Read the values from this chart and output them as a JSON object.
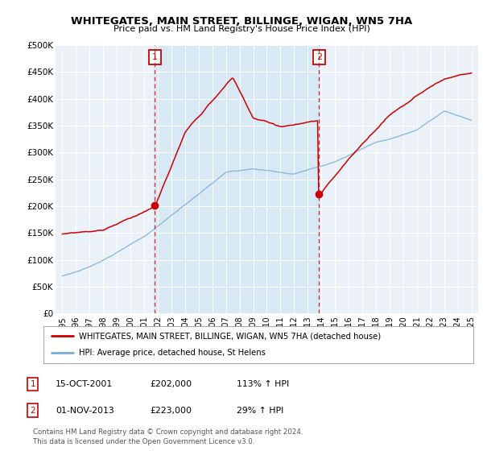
{
  "title": "WHITEGATES, MAIN STREET, BILLINGE, WIGAN, WN5 7HA",
  "subtitle": "Price paid vs. HM Land Registry's House Price Index (HPI)",
  "legend_label_red": "WHITEGATES, MAIN STREET, BILLINGE, WIGAN, WN5 7HA (detached house)",
  "legend_label_blue": "HPI: Average price, detached house, St Helens",
  "annotation1_label": "1",
  "annotation1_date": "15-OCT-2001",
  "annotation1_price": "£202,000",
  "annotation1_hpi": "113% ↑ HPI",
  "annotation2_label": "2",
  "annotation2_date": "01-NOV-2013",
  "annotation2_price": "£223,000",
  "annotation2_hpi": "29% ↑ HPI",
  "footnote": "Contains HM Land Registry data © Crown copyright and database right 2024.\nThis data is licensed under the Open Government Licence v3.0.",
  "ylim": [
    0,
    500000
  ],
  "yticks": [
    0,
    50000,
    100000,
    150000,
    200000,
    250000,
    300000,
    350000,
    400000,
    450000,
    500000
  ],
  "ytick_labels": [
    "£0",
    "£50K",
    "£100K",
    "£150K",
    "£200K",
    "£250K",
    "£300K",
    "£350K",
    "£400K",
    "£450K",
    "£500K"
  ],
  "color_red": "#cc0000",
  "color_blue": "#7aaed6",
  "color_vline": "#cc0000",
  "color_shade": "#d8e8f5",
  "background_color": "#ffffff",
  "plot_bg_color": "#eaf1f8",
  "vline1_x": 2001.79,
  "vline2_x": 2013.83,
  "sale1_x": 2001.79,
  "sale1_y": 202000,
  "sale2_x": 2013.83,
  "sale2_y": 223000,
  "xmin": 1994.5,
  "xmax": 2025.5
}
